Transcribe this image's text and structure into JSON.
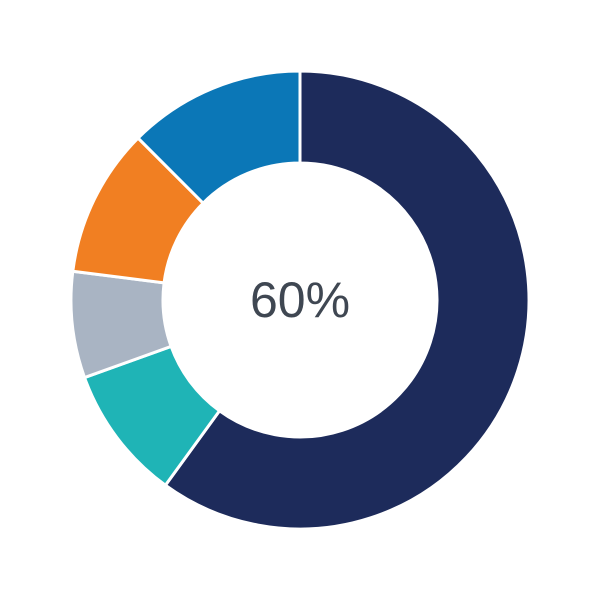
{
  "chart_data": {
    "type": "pie",
    "variant": "donut",
    "center_label": "60%",
    "values": [
      60,
      9.5,
      7.5,
      10.5,
      12.5
    ],
    "colors": [
      "#1d2b5b",
      "#1fb4b6",
      "#a9b4c3",
      "#f17f22",
      "#0b77b7"
    ],
    "start": "top",
    "direction": "clockwise",
    "legend": "none"
  }
}
